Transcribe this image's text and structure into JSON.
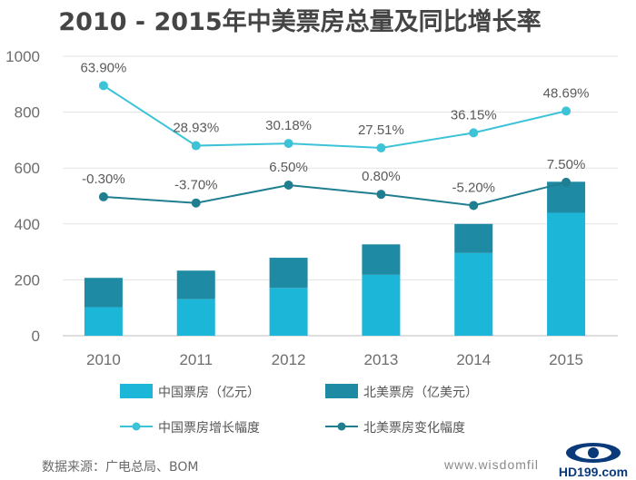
{
  "chart_data": {
    "type": "bar",
    "title": "2010 - 2015年中美票房总量及同比增长率",
    "categories": [
      "2010",
      "2011",
      "2012",
      "2013",
      "2014",
      "2015"
    ],
    "ylim": [
      0,
      1000
    ],
    "yticks": [
      "0",
      "200",
      "400",
      "600",
      "800",
      "1000"
    ],
    "bars_stacked": true,
    "series": [
      {
        "name": "中国票房（亿元）",
        "kind": "bar",
        "color": "#1cb6d9",
        "values": [
          102,
          131,
          171,
          218,
          296,
          440
        ]
      },
      {
        "name": "北美票房（亿美元）",
        "kind": "bar",
        "color": "#1e8aa3",
        "values": [
          105,
          102,
          108,
          109,
          104,
          111
        ]
      },
      {
        "name": "中国票房增长幅度",
        "kind": "line",
        "color": "#3cc3d8",
        "line_y": [
          895,
          680,
          688,
          672,
          726,
          804
        ],
        "labels": [
          "63.90%",
          "28.93%",
          "30.18%",
          "27.51%",
          "36.15%",
          "48.69%"
        ]
      },
      {
        "name": "北美票房变化幅度",
        "kind": "line",
        "color": "#1f7f90",
        "line_y": [
          497,
          475,
          539,
          506,
          466,
          549
        ],
        "labels": [
          "-0.30%",
          "-3.70%",
          "6.50%",
          "0.80%",
          "-5.20%",
          "7.50%"
        ]
      }
    ],
    "grid": "horizontal",
    "legend_placement": "bottom"
  },
  "source": "数据来源：广电总局、BOM",
  "website": "www.wisdomfil",
  "logo_text": "HD199.com"
}
